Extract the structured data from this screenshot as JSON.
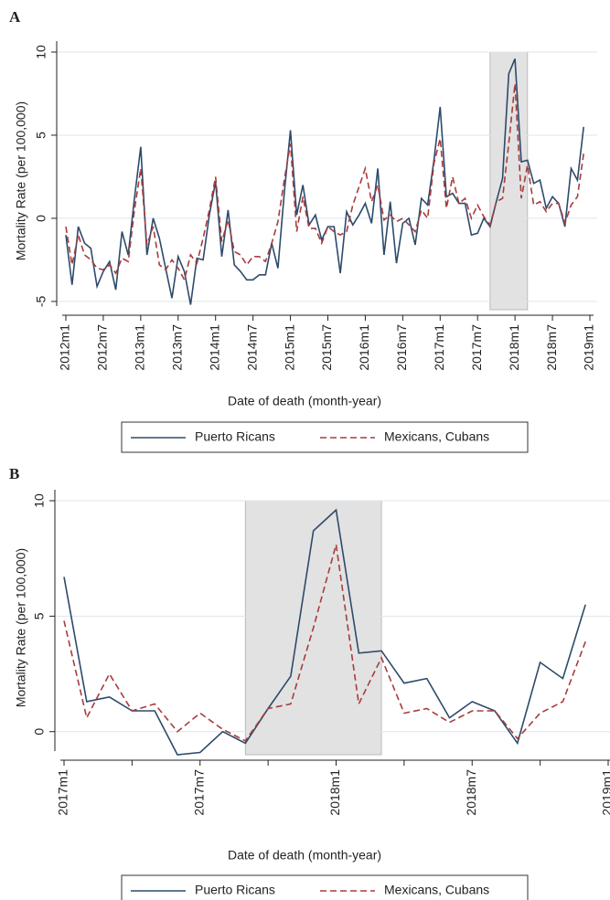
{
  "chart_data": [
    {
      "type": "line",
      "panel_label": "A",
      "y_label": "Mortality Rate (per 100,000)",
      "x_label": "Date of death (month-year)",
      "categories": [
        "2012m1",
        null,
        null,
        null,
        null,
        null,
        "2012m7",
        null,
        null,
        null,
        null,
        null,
        "2013m1",
        null,
        null,
        null,
        null,
        null,
        "2013m7",
        null,
        null,
        null,
        null,
        null,
        "2014m1",
        null,
        null,
        null,
        null,
        null,
        "2014m7",
        null,
        null,
        null,
        null,
        null,
        "2015m1",
        null,
        null,
        null,
        null,
        null,
        "2015m7",
        null,
        null,
        null,
        null,
        null,
        "2016m1",
        null,
        null,
        null,
        null,
        null,
        "2016m7",
        null,
        null,
        null,
        null,
        null,
        "2017m1",
        null,
        null,
        null,
        null,
        null,
        "2017m7",
        null,
        null,
        null,
        null,
        null,
        "2018m1",
        null,
        null,
        null,
        null,
        null,
        "2018m7",
        null,
        null,
        null,
        null,
        null,
        "2019m1"
      ],
      "series": [
        {
          "name": "Puerto Ricans",
          "color": "#2d4a6b",
          "dash": "solid",
          "values": [
            -1,
            -4,
            -0.5,
            -1.5,
            -1.8,
            -4.1,
            -3.2,
            -2.6,
            -4.3,
            -0.8,
            -2.2,
            1.2,
            4.3,
            -2.2,
            0,
            -1.2,
            -3,
            -4.8,
            -2.3,
            -3.2,
            -5.2,
            -2.4,
            -2.5,
            0.2,
            2.2,
            -2.3,
            0.5,
            -2.8,
            -3.2,
            -3.7,
            -3.7,
            -3.4,
            -3.4,
            -1.5,
            -3,
            1.5,
            5.3,
            0.2,
            2,
            -0.4,
            0.2,
            -1.3,
            -0.5,
            -0.5,
            -3.3,
            0.4,
            -0.4,
            0.2,
            0.9,
            -0.3,
            3,
            -2.2,
            1,
            -2.7,
            -0.3,
            0,
            -1.6,
            1.2,
            0.8,
            3.5,
            6.7,
            1.3,
            1.5,
            0.9,
            0.9,
            -1,
            -0.9,
            0,
            -0.5,
            1,
            2.4,
            8.7,
            9.6,
            3.4,
            3.5,
            2.1,
            2.3,
            0.6,
            1.3,
            0.9,
            -0.5,
            3,
            2.3,
            5.5,
            null
          ]
        },
        {
          "name": "Mexicans, Cubans",
          "color": "#a83c3c",
          "dash": "dashed",
          "values": [
            -0.5,
            -2.8,
            -1,
            -2.2,
            -2.5,
            -3,
            -3.1,
            -2.8,
            -3.3,
            -2.4,
            -2.6,
            0.5,
            3,
            -1.6,
            -0.5,
            -2.8,
            -3.1,
            -2.5,
            -3,
            -3.7,
            -2.2,
            -2.7,
            -1.2,
            0.5,
            2.5,
            -1.4,
            -0.1,
            -2,
            -2.2,
            -2.8,
            -2.3,
            -2.3,
            -2.6,
            -1.5,
            -0.2,
            2.3,
            4.5,
            -0.8,
            1.3,
            -0.6,
            -0.6,
            -1.5,
            -0.5,
            -0.8,
            -1,
            -0.8,
            0.8,
            1.9,
            3,
            1,
            2,
            -0.1,
            0.2,
            -0.2,
            0,
            -0.4,
            -0.8,
            0.5,
            0,
            3.3,
            4.8,
            0.6,
            2.5,
            0.9,
            1.2,
            0,
            0.8,
            0.1,
            -0.4,
            1,
            1.2,
            4.5,
            8.1,
            1.2,
            3.2,
            0.8,
            1,
            0.4,
            0.9,
            0.9,
            -0.3,
            0.8,
            1.3,
            3.9,
            null
          ]
        }
      ],
      "ylim": [
        -5.5,
        10
      ],
      "yticks": [
        -5,
        0,
        5,
        10
      ],
      "grid": true,
      "highlight_range": [
        68,
        74
      ],
      "legend": "bottom"
    },
    {
      "type": "line",
      "panel_label": "B",
      "y_label": "Mortality Rate (per 100,000)",
      "x_label": "Date of death (month-year)",
      "categories": [
        "2017m1",
        null,
        null,
        null,
        null,
        null,
        "2017m7",
        null,
        null,
        null,
        null,
        null,
        "2018m1",
        null,
        null,
        null,
        null,
        null,
        "2018m7",
        null,
        null,
        null,
        null,
        null,
        "2019m1"
      ],
      "series": [
        {
          "name": "Puerto Ricans",
          "color": "#2d4a6b",
          "dash": "solid",
          "values": [
            6.7,
            1.3,
            1.5,
            0.9,
            0.9,
            -1,
            -0.9,
            0,
            -0.5,
            1,
            2.4,
            8.7,
            9.6,
            3.4,
            3.5,
            2.1,
            2.3,
            0.6,
            1.3,
            0.9,
            -0.5,
            3,
            2.3,
            5.5,
            null
          ]
        },
        {
          "name": "Mexicans, Cubans",
          "color": "#a83c3c",
          "dash": "dashed",
          "values": [
            4.8,
            0.6,
            2.5,
            0.9,
            1.2,
            0,
            0.8,
            0.1,
            -0.4,
            1,
            1.2,
            4.5,
            8.1,
            1.2,
            3.2,
            0.8,
            1,
            0.4,
            0.9,
            0.9,
            -0.3,
            0.8,
            1.3,
            3.9,
            null
          ]
        }
      ],
      "ylim": [
        -1,
        10
      ],
      "yticks": [
        0,
        5,
        10
      ],
      "grid": true,
      "minor_ticks": 3,
      "highlight_range": [
        8,
        14
      ],
      "legend": "bottom"
    }
  ]
}
